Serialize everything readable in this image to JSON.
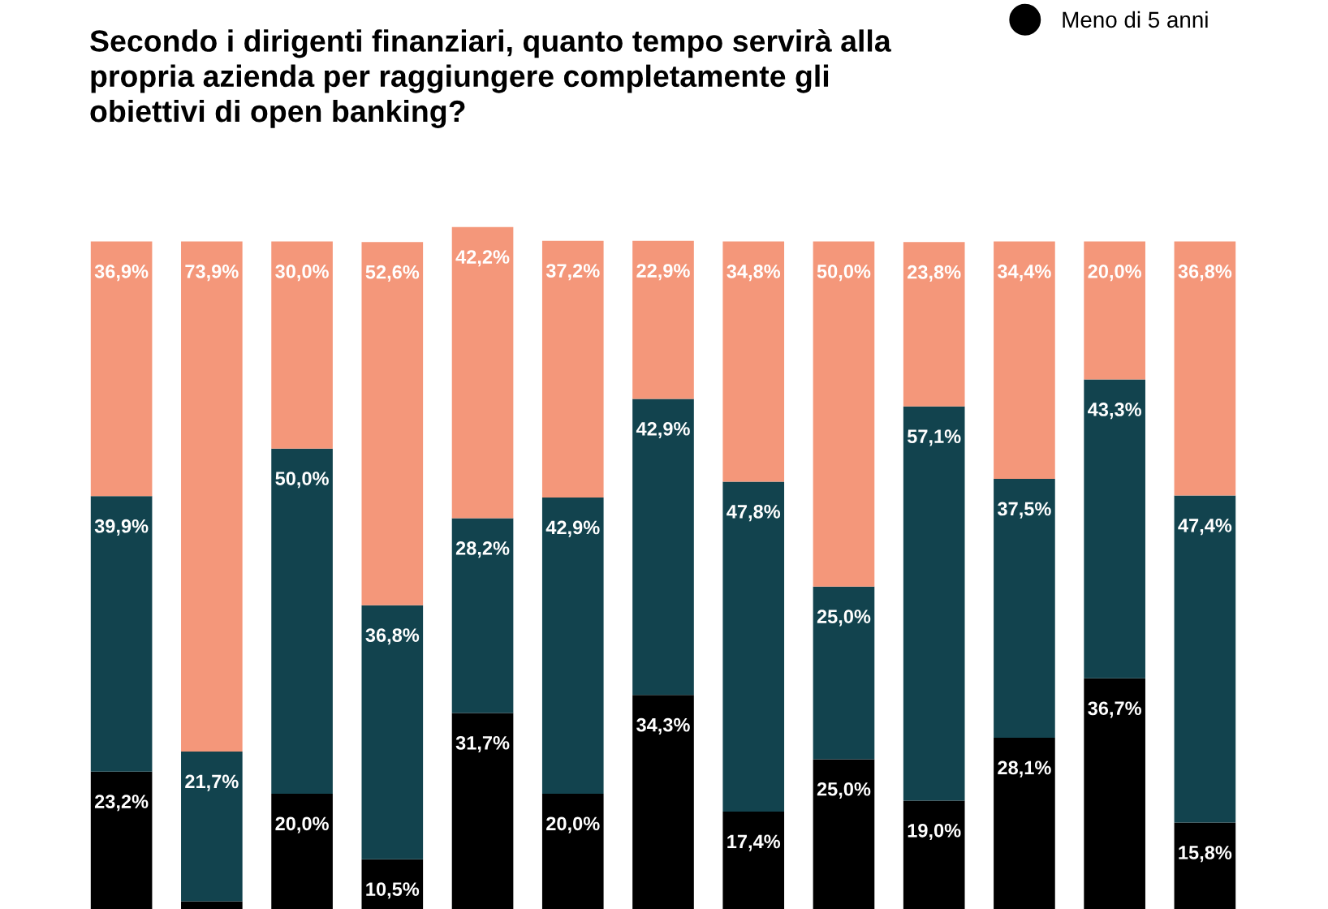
{
  "chart_data": {
    "type": "bar",
    "stacked": true,
    "title": "Secondo i dirigenti finanziari, quanto tempo servirà alla\npropria azienda per raggiungere completamente gli\nobiettivi di open banking?",
    "categories": [
      null,
      null,
      null,
      null,
      null,
      null,
      null,
      null,
      null,
      null,
      null,
      null,
      null
    ],
    "ylim": [
      0,
      103
    ],
    "tick_labels": false,
    "grid": false,
    "legend": "top right",
    "series": [
      {
        "name": "Meno di 5 anni",
        "color": "#000000",
        "values": [
          23.2,
          4.4,
          20.0,
          10.5,
          31.7,
          20.0,
          34.3,
          17.4,
          25.0,
          19.0,
          28.1,
          36.7,
          15.8
        ],
        "value_labels": [
          "23,2%",
          null,
          "20,0%",
          "10,5%",
          "31,7%",
          "20,0%",
          "34,3%",
          "17,4%",
          "25,0%",
          "19,0%",
          "28,1%",
          "36,7%",
          "15,8%"
        ]
      },
      {
        "color": "#12434e",
        "values": [
          39.9,
          21.7,
          50.0,
          36.8,
          28.2,
          42.9,
          42.9,
          47.8,
          25.0,
          57.1,
          37.5,
          43.3,
          47.4
        ],
        "value_labels": [
          "39,9%",
          "21,7%",
          "50,0%",
          "36,8%",
          "28,2%",
          "42,9%",
          "42,9%",
          "47,8%",
          "25,0%",
          "57,1%",
          "37,5%",
          "43,3%",
          "47,4%"
        ]
      },
      {
        "color": "#f4977a",
        "values": [
          36.9,
          73.9,
          30.0,
          52.6,
          42.2,
          37.2,
          22.9,
          34.8,
          50.0,
          23.8,
          34.4,
          20.0,
          36.8
        ],
        "value_labels": [
          "36,9%",
          "73,9%",
          "30,0%",
          "52,6%",
          "42,2%",
          "37,2%",
          "22,9%",
          "34,8%",
          "50,0%",
          "23,8%",
          "34,4%",
          "20,0%",
          "36,8%"
        ]
      }
    ]
  }
}
